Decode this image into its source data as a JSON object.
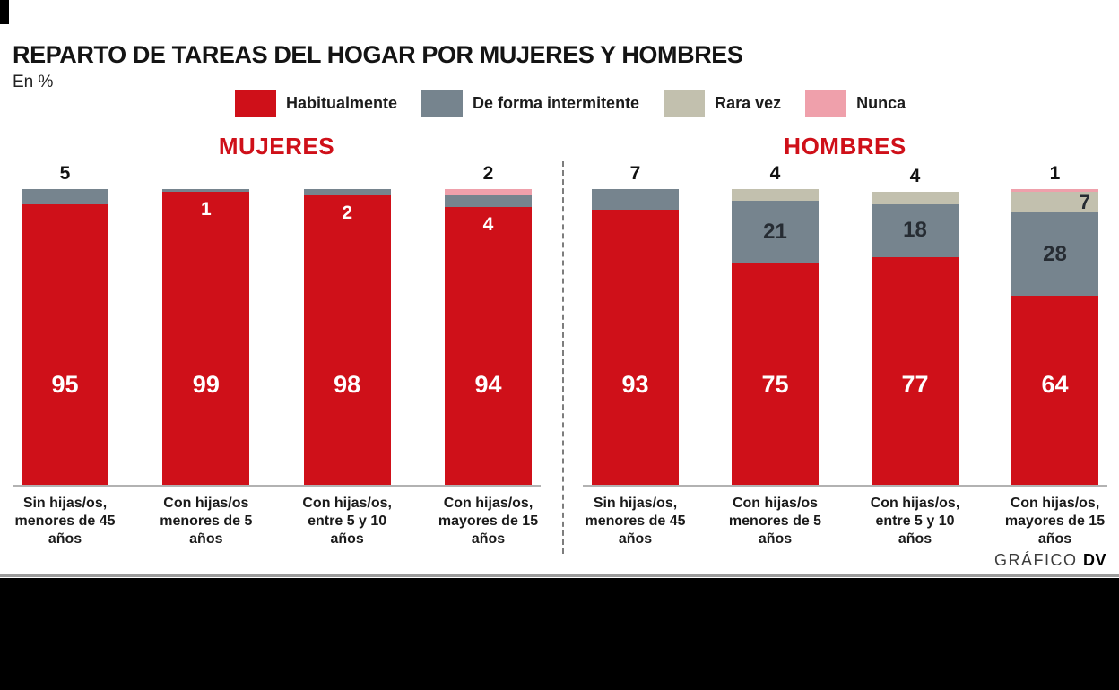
{
  "header": {
    "title": "REPARTO DE TAREAS DEL HOGAR POR MUJERES Y HOMBRES",
    "unit_label": "En %"
  },
  "footer": {
    "credit_prefix": "GRÁFICO ",
    "credit_bold": "DV"
  },
  "colors": {
    "habitualmente": "#cf1019",
    "intermitente": "#76848e",
    "rara_vez": "#c2c0ae",
    "nunca": "#efa0ab",
    "group_title": "#cf1019",
    "segment_dark_text": "#262c33"
  },
  "chart_data": {
    "type": "bar",
    "subtype": "stacked-percentage",
    "title": "REPARTO DE TAREAS DEL HOGAR POR MUJERES Y HOMBRES",
    "unit": "%",
    "ymax": 100,
    "legend_position": "top",
    "legend": [
      {
        "key": "habitualmente",
        "label": "Habitualmente"
      },
      {
        "key": "intermitente",
        "label": "De forma intermitente"
      },
      {
        "key": "rara_vez",
        "label": "Rara vez"
      },
      {
        "key": "nunca",
        "label": "Nunca"
      }
    ],
    "categories": [
      [
        "Sin hijas/os,",
        "menores de 45",
        "años"
      ],
      [
        "Con hijas/os",
        "menores de 5",
        "años"
      ],
      [
        "Con hijas/os,",
        "entre 5 y 10",
        "años"
      ],
      [
        "Con hijas/os,",
        "mayores de 15",
        "años"
      ]
    ],
    "groups": [
      {
        "name": "MUJERES",
        "bars": [
          {
            "segments": [
              {
                "key": "intermitente",
                "value": 5,
                "label_pos": "above"
              },
              {
                "key": "habitualmente",
                "value": 95,
                "label_pos": "center"
              }
            ]
          },
          {
            "segments": [
              {
                "key": "intermitente",
                "value": 1,
                "label_pos": "below-white"
              },
              {
                "key": "habitualmente",
                "value": 99,
                "label_pos": "center"
              }
            ]
          },
          {
            "segments": [
              {
                "key": "intermitente",
                "value": 2,
                "label_pos": "below-white"
              },
              {
                "key": "habitualmente",
                "value": 98,
                "label_pos": "center"
              }
            ]
          },
          {
            "segments": [
              {
                "key": "nunca",
                "value": 2,
                "label_pos": "above"
              },
              {
                "key": "intermitente",
                "value": 4,
                "label_pos": "below-white"
              },
              {
                "key": "habitualmente",
                "value": 94,
                "label_pos": "center"
              }
            ]
          }
        ]
      },
      {
        "name": "HOMBRES",
        "bars": [
          {
            "segments": [
              {
                "key": "intermitente",
                "value": 7,
                "label_pos": "above"
              },
              {
                "key": "habitualmente",
                "value": 93,
                "label_pos": "center"
              }
            ]
          },
          {
            "segments": [
              {
                "key": "rara_vez",
                "value": 4,
                "label_pos": "above"
              },
              {
                "key": "intermitente",
                "value": 21,
                "label_pos": "inside"
              },
              {
                "key": "habitualmente",
                "value": 75,
                "label_pos": "center"
              }
            ]
          },
          {
            "segments": [
              {
                "key": "rara_vez",
                "value": 4,
                "label_pos": "above"
              },
              {
                "key": "intermitente",
                "value": 18,
                "label_pos": "inside"
              },
              {
                "key": "habitualmente",
                "value": 77,
                "label_pos": "center"
              }
            ]
          },
          {
            "segments": [
              {
                "key": "nunca",
                "value": 1,
                "label_pos": "above"
              },
              {
                "key": "rara_vez",
                "value": 7,
                "label_pos": "inside-right"
              },
              {
                "key": "intermitente",
                "value": 28,
                "label_pos": "inside"
              },
              {
                "key": "habitualmente",
                "value": 64,
                "label_pos": "center"
              }
            ]
          }
        ]
      }
    ]
  }
}
